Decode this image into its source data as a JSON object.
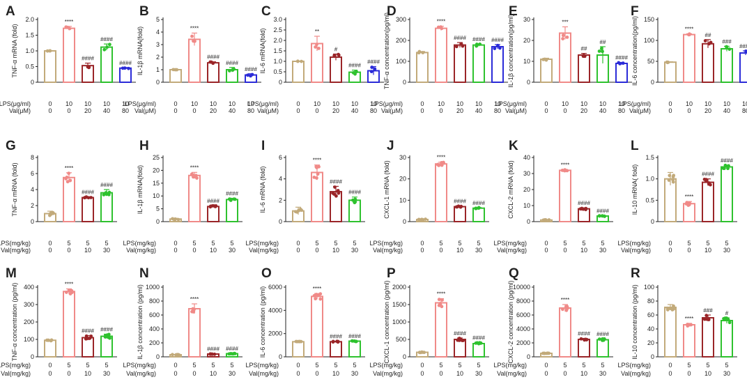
{
  "figure_title": "",
  "colors": {
    "ctrl": "#c2aa7a",
    "lps": "#f08a88",
    "low": "#9a2528",
    "mid": "#2ec22e",
    "high": "#2b2bd8",
    "axis": "#222222"
  },
  "chart_data": [
    {
      "panel": "A",
      "type": "bar",
      "ylabel": "TNF-α mRNA (fold)",
      "ylim": [
        0,
        2.0
      ],
      "yticks": [
        "0",
        "0.5",
        "1.0",
        "1.5",
        "2.0"
      ],
      "cond_labels": [
        "LPS(μg/ml)",
        "Val(μM)"
      ],
      "rows": [
        [
          "0",
          "10",
          "10",
          "10",
          "10"
        ],
        [
          "0",
          "0",
          "20",
          "40",
          "80"
        ]
      ],
      "values": [
        1.0,
        1.72,
        0.53,
        1.12,
        0.45
      ],
      "errors": [
        0.01,
        0.06,
        0.08,
        0.1,
        0.02
      ],
      "sig": [
        "",
        "****",
        "####",
        "####",
        "####"
      ],
      "n": 3,
      "colors": [
        "ctrl",
        "lps",
        "low",
        "mid",
        "high"
      ]
    },
    {
      "panel": "B",
      "type": "bar",
      "ylabel": "IL-1β mRNA(fold)",
      "ylim": [
        0,
        5
      ],
      "yticks": [
        "0",
        "1",
        "2",
        "3",
        "4",
        "5"
      ],
      "cond_labels": [
        "LPS(μg/ml)",
        "Val(μM)"
      ],
      "rows": [
        [
          "0",
          "10",
          "10",
          "10",
          "10"
        ],
        [
          "0",
          "0",
          "20",
          "40",
          "80"
        ]
      ],
      "values": [
        1.0,
        3.42,
        1.55,
        1.0,
        0.58
      ],
      "errors": [
        0.01,
        0.5,
        0.08,
        0.18,
        0.1
      ],
      "sig": [
        "",
        "****",
        "####",
        "####",
        "####"
      ],
      "n": 3,
      "colors": [
        "ctrl",
        "lps",
        "low",
        "mid",
        "high"
      ]
    },
    {
      "panel": "C",
      "type": "bar",
      "ylabel": "IL-6 mRNA(fold)",
      "ylim": [
        0,
        3.0
      ],
      "yticks": [
        "0",
        "0.5",
        "1.0",
        "1.5",
        "2.0",
        "2.5",
        "3.0"
      ],
      "cond_labels": [
        "LPS(μg/ml)",
        "Val(μM)"
      ],
      "rows": [
        [
          "0",
          "10",
          "10",
          "10",
          "10"
        ],
        [
          "0",
          "0",
          "20",
          "40",
          "80"
        ]
      ],
      "values": [
        1.0,
        1.85,
        1.2,
        0.48,
        0.55
      ],
      "errors": [
        0.01,
        0.35,
        0.15,
        0.1,
        0.2
      ],
      "sig": [
        "",
        "**",
        "#",
        "####",
        "####"
      ],
      "n": 3,
      "colors": [
        "ctrl",
        "lps",
        "low",
        "mid",
        "high"
      ]
    },
    {
      "panel": "D",
      "type": "bar",
      "ylabel": "TNF-α concentration(pg/ml)",
      "ylim": [
        0,
        300
      ],
      "yticks": [
        "0",
        "100",
        "200",
        "300"
      ],
      "cond_labels": [
        "LPS(μg/ml)",
        "Val(μM)"
      ],
      "rows": [
        [
          "0",
          "10",
          "10",
          "10",
          "10"
        ],
        [
          "0",
          "0",
          "20",
          "40",
          "80"
        ]
      ],
      "values": [
        142,
        258,
        178,
        178,
        170
      ],
      "errors": [
        5,
        10,
        12,
        6,
        10
      ],
      "sig": [
        "",
        "****",
        "####",
        "####",
        "####"
      ],
      "n": 3,
      "colors": [
        "ctrl",
        "lps",
        "low",
        "mid",
        "high"
      ]
    },
    {
      "panel": "E",
      "type": "bar",
      "ylabel": "IL-1β concentration(pg/ml)",
      "ylim": [
        0,
        30
      ],
      "yticks": [
        "0",
        "10",
        "20",
        "30"
      ],
      "cond_labels": [
        "LPS(μg/ml)",
        "Val(μM)"
      ],
      "rows": [
        [
          "0",
          "10",
          "10",
          "10",
          "10"
        ],
        [
          "0",
          "0",
          "20",
          "40",
          "80"
        ]
      ],
      "values": [
        11,
        23.5,
        13,
        13,
        9
      ],
      "errors": [
        0.5,
        3,
        0.8,
        4,
        0.5
      ],
      "sig": [
        "",
        "***",
        "##",
        "##",
        "####"
      ],
      "n": 3,
      "colors": [
        "ctrl",
        "lps",
        "low",
        "mid",
        "high"
      ]
    },
    {
      "panel": "F",
      "type": "bar",
      "ylabel": "IL-6 concentration(pg/ml)",
      "ylim": [
        0,
        150
      ],
      "yticks": [
        "0",
        "50",
        "100",
        "150"
      ],
      "cond_labels": [
        "LPS(μg/ml)",
        "Val(μM)"
      ],
      "rows": [
        [
          "0",
          "10",
          "10",
          "10",
          "10"
        ],
        [
          "0",
          "0",
          "20",
          "40",
          "80"
        ]
      ],
      "values": [
        48,
        114,
        92,
        80,
        70
      ],
      "errors": [
        1,
        2,
        10,
        6,
        5
      ],
      "sig": [
        "",
        "****",
        "##",
        "###",
        "####"
      ],
      "n": 3,
      "colors": [
        "ctrl",
        "lps",
        "low",
        "mid",
        "high"
      ]
    },
    {
      "panel": "G",
      "type": "bar",
      "ylabel": "TNF-α mRNA (fold)",
      "ylim": [
        0,
        8
      ],
      "yticks": [
        "0",
        "2",
        "4",
        "6",
        "8"
      ],
      "cond_labels": [
        "LPS(mg/kg)",
        "Val(mg/kg)"
      ],
      "rows": [
        [
          "0",
          "5",
          "5",
          "5"
        ],
        [
          "0",
          "0",
          "10",
          "30"
        ]
      ],
      "values": [
        1.0,
        5.5,
        3.0,
        3.6
      ],
      "errors": [
        0.3,
        0.6,
        0.1,
        0.4
      ],
      "sig": [
        "",
        "****",
        "####",
        "####"
      ],
      "n": 6,
      "colors": [
        "ctrl",
        "lps",
        "low",
        "mid"
      ]
    },
    {
      "panel": "H",
      "type": "bar",
      "ylabel": "IL-1β mRNA(fold)",
      "ylim": [
        0,
        25
      ],
      "yticks": [
        "0",
        "5",
        "10",
        "15",
        "20",
        "25"
      ],
      "cond_labels": [
        "LPS(mg/kg)",
        "Val(mg/kg)"
      ],
      "rows": [
        [
          "0",
          "5",
          "5",
          "5"
        ],
        [
          "0",
          "0",
          "10",
          "30"
        ]
      ],
      "values": [
        1.0,
        18.0,
        5.9,
        8.6
      ],
      "errors": [
        0.3,
        1.2,
        0.3,
        0.5
      ],
      "sig": [
        "",
        "****",
        "####",
        "####"
      ],
      "n": 6,
      "colors": [
        "ctrl",
        "lps",
        "low",
        "mid"
      ]
    },
    {
      "panel": "I",
      "type": "bar",
      "ylabel": "IL-6 mRNA (fold)",
      "ylim": [
        0,
        6
      ],
      "yticks": [
        "0",
        "2",
        "4",
        "6"
      ],
      "cond_labels": [
        "LPS(mg/kg)",
        "Val(mg/kg)"
      ],
      "rows": [
        [
          "0",
          "5",
          "5",
          "5"
        ],
        [
          "0",
          "0",
          "10",
          "30"
        ]
      ],
      "values": [
        1.0,
        4.6,
        2.8,
        2.0
      ],
      "errors": [
        0.35,
        0.7,
        0.5,
        0.3
      ],
      "sig": [
        "",
        "****",
        "####",
        "####"
      ],
      "n": 6,
      "colors": [
        "ctrl",
        "lps",
        "low",
        "mid"
      ]
    },
    {
      "panel": "J",
      "type": "bar",
      "ylabel": "CXCL-1 mRNA (fold)",
      "ylim": [
        0,
        30
      ],
      "yticks": [
        "0",
        "10",
        "20",
        "30"
      ],
      "cond_labels": [
        "LPS(mg/kg)",
        "Val(mg/kg)"
      ],
      "rows": [
        [
          "0",
          "5",
          "5",
          "5"
        ],
        [
          "0",
          "0",
          "10",
          "30"
        ]
      ],
      "values": [
        1.0,
        27.0,
        7.0,
        6.3
      ],
      "errors": [
        0.2,
        0.8,
        0.3,
        0.3
      ],
      "sig": [
        "",
        "****",
        "####",
        "####"
      ],
      "n": 6,
      "colors": [
        "ctrl",
        "lps",
        "low",
        "mid"
      ]
    },
    {
      "panel": "K",
      "type": "bar",
      "ylabel": "CXCL-2 mRNA (fold)",
      "ylim": [
        0,
        40
      ],
      "yticks": [
        "0",
        "10",
        "20",
        "30",
        "40"
      ],
      "cond_labels": [
        "LPS(mg/kg)",
        "Val(mg/kg)"
      ],
      "rows": [
        [
          "0",
          "5",
          "5",
          "5"
        ],
        [
          "0",
          "0",
          "10",
          "30"
        ]
      ],
      "values": [
        1.0,
        32.0,
        8.0,
        3.5
      ],
      "errors": [
        0.2,
        0.5,
        0.6,
        0.3
      ],
      "sig": [
        "",
        "****",
        "####",
        "####"
      ],
      "n": 6,
      "colors": [
        "ctrl",
        "lps",
        "low",
        "mid"
      ]
    },
    {
      "panel": "L",
      "type": "bar",
      "ylabel": "IL-10 mRNA( fold)",
      "ylim": [
        0,
        1.5
      ],
      "yticks": [
        "0",
        "0.5",
        "1.0",
        "1.5"
      ],
      "cond_labels": [
        "LPS(mg/kg)",
        "Val(mg/kg)"
      ],
      "rows": [
        [
          "0",
          "5",
          "5",
          "5"
        ],
        [
          "0",
          "0",
          "10",
          "30"
        ]
      ],
      "values": [
        1.0,
        0.42,
        0.92,
        1.28
      ],
      "errors": [
        0.15,
        0.05,
        0.08,
        0.04
      ],
      "sig": [
        "",
        "****",
        "####",
        "####"
      ],
      "n": 6,
      "colors": [
        "ctrl",
        "lps",
        "low",
        "mid"
      ]
    },
    {
      "panel": "M",
      "type": "bar",
      "ylabel": "TNF-α concentration (pg/ml)",
      "ylim": [
        0,
        400
      ],
      "yticks": [
        "0",
        "100",
        "200",
        "300",
        "400"
      ],
      "cond_labels": [
        "LPS(mg/kg)",
        "Val(mg/kg)"
      ],
      "rows": [
        [
          "0",
          "5",
          "5",
          "5"
        ],
        [
          "0",
          "0",
          "10",
          "30"
        ]
      ],
      "values": [
        95,
        375,
        110,
        118
      ],
      "errors": [
        4,
        15,
        12,
        12
      ],
      "sig": [
        "",
        "****",
        "####",
        "####"
      ],
      "n": 6,
      "colors": [
        "ctrl",
        "lps",
        "low",
        "mid"
      ]
    },
    {
      "panel": "N",
      "type": "bar",
      "ylabel": "IL-1β concentration (pg/ml)",
      "ylim": [
        0,
        1000
      ],
      "yticks": [
        "0",
        "200",
        "400",
        "600",
        "800",
        "1000"
      ],
      "cond_labels": [
        "LPS(mg/kg)",
        "Val(mg/kg)"
      ],
      "rows": [
        [
          "0",
          "5",
          "5",
          "5"
        ],
        [
          "0",
          "0",
          "10",
          "30"
        ]
      ],
      "values": [
        30,
        690,
        40,
        45
      ],
      "errors": [
        4,
        70,
        5,
        5
      ],
      "sig": [
        "",
        "****",
        "####",
        "####"
      ],
      "n": 6,
      "colors": [
        "ctrl",
        "lps",
        "low",
        "mid"
      ]
    },
    {
      "panel": "O",
      "type": "bar",
      "ylabel": "IL-6 concentration (pg/ml)",
      "ylim": [
        0,
        6000
      ],
      "yticks": [
        "0",
        "2000",
        "4000",
        "6000"
      ],
      "cond_labels": [
        "LPS(mg/kg)",
        "Val(mg/kg)"
      ],
      "rows": [
        [
          "0",
          "5",
          "5",
          "5"
        ],
        [
          "0",
          "0",
          "10",
          "30"
        ]
      ],
      "values": [
        1300,
        5200,
        1300,
        1350
      ],
      "errors": [
        30,
        250,
        40,
        40
      ],
      "sig": [
        "",
        "****",
        "####",
        "####"
      ],
      "n": 6,
      "colors": [
        "ctrl",
        "lps",
        "low",
        "mid"
      ]
    },
    {
      "panel": "P",
      "type": "bar",
      "ylabel": "CXCL-1 concentration (pg/ml)",
      "ylim": [
        0,
        2000
      ],
      "yticks": [
        "0",
        "500",
        "1000",
        "1500",
        "2000"
      ],
      "cond_labels": [
        "LPS(mg/kg)",
        "Val(mg/kg)"
      ],
      "rows": [
        [
          "0",
          "5",
          "5",
          "5"
        ],
        [
          "0",
          "0",
          "10",
          "30"
        ]
      ],
      "values": [
        130,
        1550,
        500,
        380
      ],
      "errors": [
        10,
        120,
        40,
        30
      ],
      "sig": [
        "",
        "****",
        "####",
        "####"
      ],
      "n": 6,
      "colors": [
        "ctrl",
        "lps",
        "low",
        "mid"
      ]
    },
    {
      "panel": "Q",
      "type": "bar",
      "ylabel": "CXCL-2 concentration (pg/ml)",
      "ylim": [
        0,
        10000
      ],
      "yticks": [
        "0",
        "2000",
        "4000",
        "6000",
        "8000",
        "10000"
      ],
      "cond_labels": [
        "LPS(mg/kg)",
        "Val(mg/kg)"
      ],
      "rows": [
        [
          "0",
          "5",
          "5",
          "5"
        ],
        [
          "0",
          "0",
          "10",
          "30"
        ]
      ],
      "values": [
        500,
        7000,
        2500,
        2450
      ],
      "errors": [
        30,
        500,
        150,
        150
      ],
      "sig": [
        "",
        "****",
        "####",
        "####"
      ],
      "n": 6,
      "colors": [
        "ctrl",
        "lps",
        "low",
        "mid"
      ]
    },
    {
      "panel": "R",
      "type": "bar",
      "ylabel": "IL-10 concentration (pg/ml)",
      "ylim": [
        0,
        100
      ],
      "yticks": [
        "0",
        "20",
        "40",
        "60",
        "80",
        "100"
      ],
      "cond_labels": [
        "LPS(mg/kg)",
        "Val(mg/kg)"
      ],
      "rows": [
        [
          "0",
          "5",
          "5",
          "5"
        ],
        [
          "0",
          "0",
          "10",
          "30"
        ]
      ],
      "values": [
        71,
        46,
        56,
        52
      ],
      "errors": [
        4,
        2,
        4,
        4
      ],
      "sig": [
        "",
        "****",
        "###",
        "#"
      ],
      "n": 6,
      "colors": [
        "ctrl",
        "lps",
        "low",
        "mid"
      ]
    }
  ]
}
